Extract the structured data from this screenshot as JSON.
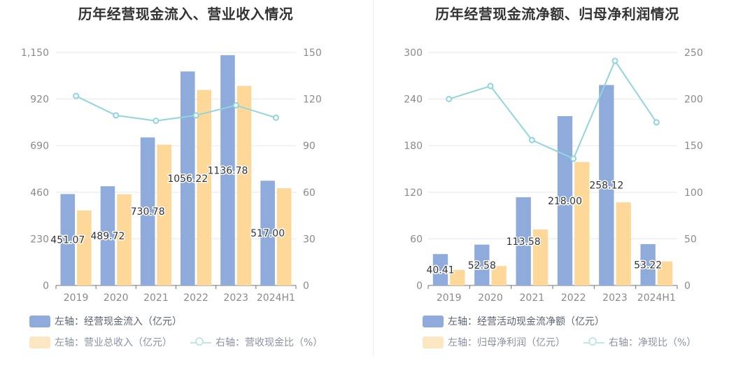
{
  "colors": {
    "bar_primary": "#8eabdb",
    "bar_secondary": "#fdd898",
    "line": "#8fd6dc",
    "axis_text": "#8a8a8a",
    "grid": "#e6e8ee",
    "label_text": "#333333"
  },
  "chart_data": [
    {
      "type": "bar",
      "title": "历年经营现金流入、营业收入情况",
      "categories": [
        "2019",
        "2020",
        "2021",
        "2022",
        "2023",
        "2024H1"
      ],
      "y_left": {
        "ticks": [
          "0",
          "230",
          "460",
          "690",
          "920",
          "1,150"
        ],
        "min": 0,
        "max": 1150
      },
      "y_right": {
        "ticks": [
          "0",
          "30",
          "60",
          "90",
          "120",
          "150"
        ],
        "min": 0,
        "max": 150
      },
      "series": [
        {
          "name": "左轴：经营现金流入（亿元）",
          "type": "bar",
          "axis": "left",
          "values": [
            451.07,
            489.72,
            730.78,
            1056.22,
            1136.78,
            517.0
          ],
          "labels": [
            "451.07",
            "489.72",
            "730.78",
            "1056.22",
            "1136.78",
            "517.00"
          ]
        },
        {
          "name": "左轴：营业总收入（亿元）",
          "type": "bar",
          "axis": "left",
          "values": [
            370,
            450,
            695,
            965,
            985,
            480
          ]
        },
        {
          "name": "右轴：营收现金比（%）",
          "type": "line",
          "axis": "right",
          "values": [
            122,
            109.5,
            106,
            109.5,
            116,
            108
          ]
        }
      ],
      "legend": [
        "左轴：经营现金流入（亿元）",
        "左轴：营业总收入（亿元）",
        "右轴：营收现金比（%）"
      ],
      "legend_position": "bottom-left"
    },
    {
      "type": "bar",
      "title": "历年经营现金流净额、归母净利润情况",
      "categories": [
        "2019",
        "2020",
        "2021",
        "2022",
        "2023",
        "2024H1"
      ],
      "y_left": {
        "ticks": [
          "0",
          "60",
          "120",
          "180",
          "240",
          "300"
        ],
        "min": 0,
        "max": 300
      },
      "y_right": {
        "ticks": [
          "0",
          "50",
          "100",
          "150",
          "200",
          "250"
        ],
        "min": 0,
        "max": 250
      },
      "series": [
        {
          "name": "左轴：经营活动现金流净额（亿元）",
          "type": "bar",
          "axis": "left",
          "values": [
            40.41,
            52.58,
            113.58,
            218.0,
            258.12,
            53.22
          ],
          "labels": [
            "40.41",
            "52.58",
            "113.58",
            "218.00",
            "258.12",
            "53.22"
          ]
        },
        {
          "name": "左轴：归母净利润（亿元）",
          "type": "bar",
          "axis": "left",
          "values": [
            20,
            25,
            72,
            159,
            107,
            31
          ]
        },
        {
          "name": "右轴：净现比（%）",
          "type": "line",
          "axis": "right",
          "values": [
            200,
            214,
            156,
            136,
            241,
            175
          ]
        }
      ],
      "legend": [
        "左轴：经营活动现金流净额（亿元）",
        "左轴：归母净利润（亿元）",
        "右轴：净现比（%）"
      ],
      "legend_position": "bottom-left"
    }
  ]
}
